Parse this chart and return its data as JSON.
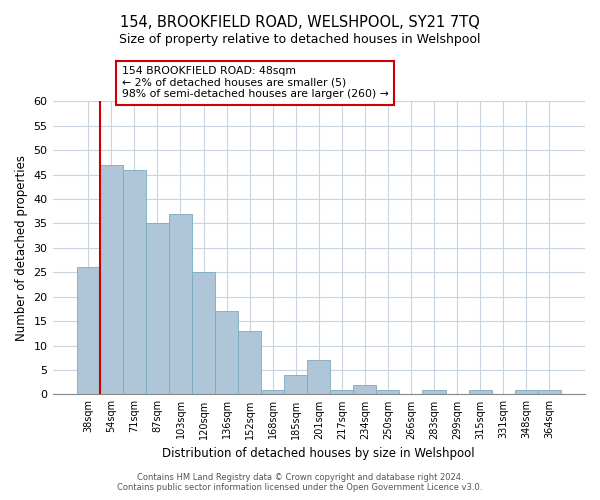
{
  "title": "154, BROOKFIELD ROAD, WELSHPOOL, SY21 7TQ",
  "subtitle": "Size of property relative to detached houses in Welshpool",
  "xlabel": "Distribution of detached houses by size in Welshpool",
  "ylabel": "Number of detached properties",
  "bar_labels": [
    "38sqm",
    "54sqm",
    "71sqm",
    "87sqm",
    "103sqm",
    "120sqm",
    "136sqm",
    "152sqm",
    "168sqm",
    "185sqm",
    "201sqm",
    "217sqm",
    "234sqm",
    "250sqm",
    "266sqm",
    "283sqm",
    "299sqm",
    "315sqm",
    "331sqm",
    "348sqm",
    "364sqm"
  ],
  "bar_values": [
    26,
    47,
    46,
    35,
    37,
    25,
    17,
    13,
    1,
    4,
    7,
    1,
    2,
    1,
    0,
    1,
    0,
    1,
    0,
    1,
    1
  ],
  "bar_color": "#aec6d8",
  "bar_edge_color": "#7aaac0",
  "vline_color": "#cc0000",
  "vline_x": 0.5,
  "ylim": [
    0,
    60
  ],
  "yticks": [
    0,
    5,
    10,
    15,
    20,
    25,
    30,
    35,
    40,
    45,
    50,
    55,
    60
  ],
  "annotation_text": "154 BROOKFIELD ROAD: 48sqm\n← 2% of detached houses are smaller (5)\n98% of semi-detached houses are larger (260) →",
  "annotation_box_color": "#ffffff",
  "annotation_box_edge": "#cc0000",
  "footer_line1": "Contains HM Land Registry data © Crown copyright and database right 2024.",
  "footer_line2": "Contains public sector information licensed under the Open Government Licence v3.0."
}
